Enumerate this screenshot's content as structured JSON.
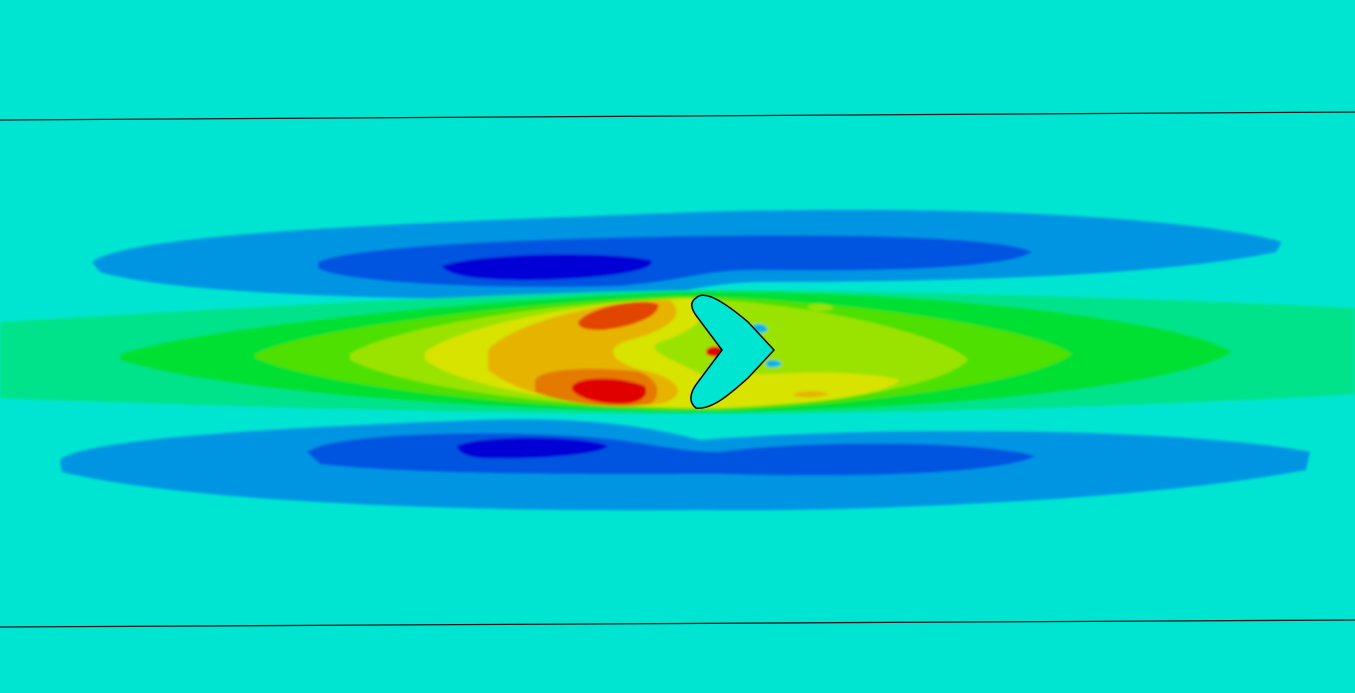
{
  "viewport": {
    "background_color": "#00e5d2",
    "boundary_line_color": "#1a1a1a",
    "body_outline_color": "#000000"
  },
  "contour_palette": {
    "ambient": "#00e5d2",
    "light_blue": "#0095e3",
    "mid_blue": "#0055e0",
    "dark_blue": "#0000d6",
    "green_1": "#00e38a",
    "green_2": "#00e030",
    "green_3": "#4ee000",
    "green_4": "#9ae300",
    "yellow": "#d8e300",
    "amber": "#e6b400",
    "orange": "#e47a00",
    "orange_red": "#e24400",
    "red": "#e00000",
    "cyan_light": "#00b6e6"
  },
  "body_shape": {
    "icon": "chevron-body-icon",
    "fill": "#00e5d2"
  }
}
